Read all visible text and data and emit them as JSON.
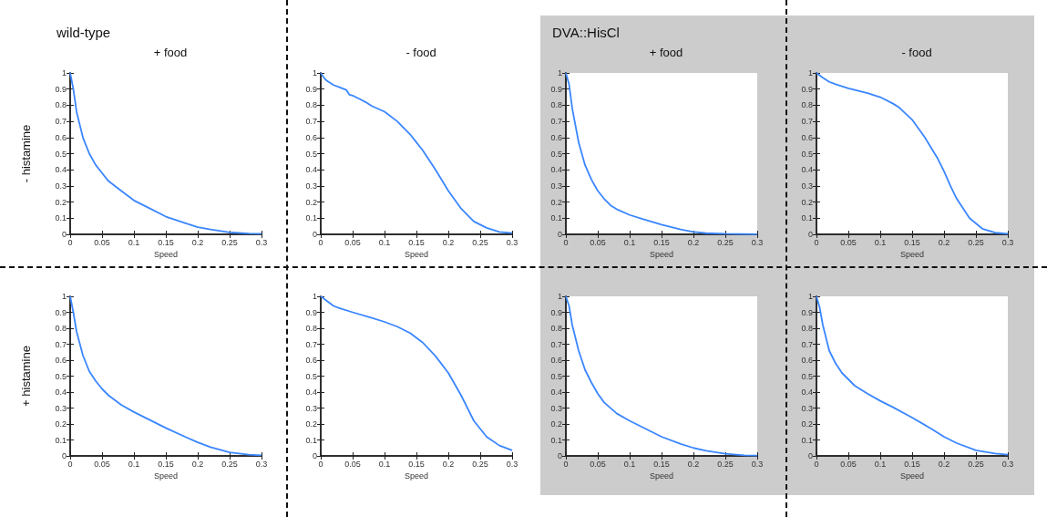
{
  "chart_data": [
    {
      "type": "line",
      "title": "+ food",
      "ylabel": "- histamine",
      "xlabel": "Speed",
      "annotations": [
        "wild-type"
      ],
      "marker": "none",
      "xlim": [
        0,
        0.3
      ],
      "xticks": [
        0,
        0.05,
        0.1,
        0.15,
        0.2,
        0.25,
        0.3
      ],
      "ylim": [
        0,
        1
      ],
      "yticks": [
        0,
        0.1,
        0.2,
        0.3,
        0.4,
        0.5,
        0.6,
        0.7,
        0.8,
        0.9,
        1
      ],
      "series": [
        {
          "color": "#3a86ff",
          "x": [
            0,
            0.005,
            0.01,
            0.02,
            0.03,
            0.04,
            0.05,
            0.06,
            0.08,
            0.1,
            0.12,
            0.15,
            0.18,
            0.2,
            0.22,
            0.25,
            0.28,
            0.3
          ],
          "values": [
            1,
            0.9,
            0.76,
            0.6,
            0.5,
            0.43,
            0.38,
            0.33,
            0.27,
            0.21,
            0.17,
            0.11,
            0.07,
            0.045,
            0.03,
            0.012,
            0.005,
            0.003
          ]
        }
      ]
    },
    {
      "type": "line",
      "title": "- food",
      "xlabel": "Speed",
      "marker": "none",
      "xlim": [
        0,
        0.3
      ],
      "xticks": [
        0,
        0.05,
        0.1,
        0.15,
        0.2,
        0.25,
        0.3
      ],
      "ylim": [
        0,
        1
      ],
      "yticks": [
        0,
        0.1,
        0.2,
        0.3,
        0.4,
        0.5,
        0.6,
        0.7,
        0.8,
        0.9,
        1
      ],
      "series": [
        {
          "color": "#3a86ff",
          "x": [
            0,
            0.005,
            0.01,
            0.02,
            0.03,
            0.04,
            0.045,
            0.05,
            0.06,
            0.07,
            0.08,
            0.1,
            0.12,
            0.14,
            0.15,
            0.16,
            0.18,
            0.2,
            0.22,
            0.24,
            0.26,
            0.28,
            0.3
          ],
          "values": [
            1,
            0.97,
            0.95,
            0.925,
            0.91,
            0.895,
            0.865,
            0.86,
            0.84,
            0.82,
            0.795,
            0.76,
            0.7,
            0.62,
            0.57,
            0.52,
            0.4,
            0.27,
            0.16,
            0.08,
            0.04,
            0.015,
            0.008
          ]
        }
      ]
    },
    {
      "type": "line",
      "title": "+ food",
      "xlabel": "Speed",
      "annotations": [
        "DVA::HisCl"
      ],
      "marker": "none",
      "xlim": [
        0,
        0.3
      ],
      "xticks": [
        0,
        0.05,
        0.1,
        0.15,
        0.2,
        0.25,
        0.3
      ],
      "ylim": [
        0,
        1
      ],
      "yticks": [
        0,
        0.1,
        0.2,
        0.3,
        0.4,
        0.5,
        0.6,
        0.7,
        0.8,
        0.9,
        1
      ],
      "series": [
        {
          "color": "#3a86ff",
          "x": [
            0,
            0.005,
            0.01,
            0.02,
            0.03,
            0.04,
            0.05,
            0.06,
            0.07,
            0.08,
            0.1,
            0.12,
            0.15,
            0.18,
            0.2,
            0.22,
            0.25,
            0.3
          ],
          "values": [
            1,
            0.93,
            0.78,
            0.57,
            0.43,
            0.34,
            0.27,
            0.22,
            0.18,
            0.155,
            0.12,
            0.095,
            0.06,
            0.03,
            0.015,
            0.007,
            0.003,
            0.001
          ]
        }
      ]
    },
    {
      "type": "line",
      "title": "- food",
      "xlabel": "Speed",
      "marker": "none",
      "xlim": [
        0,
        0.3
      ],
      "xticks": [
        0,
        0.05,
        0.1,
        0.15,
        0.2,
        0.25,
        0.3
      ],
      "ylim": [
        0,
        1
      ],
      "yticks": [
        0,
        0.1,
        0.2,
        0.3,
        0.4,
        0.5,
        0.6,
        0.7,
        0.8,
        0.9,
        1
      ],
      "series": [
        {
          "color": "#3a86ff",
          "x": [
            0,
            0.01,
            0.02,
            0.03,
            0.05,
            0.08,
            0.1,
            0.12,
            0.13,
            0.15,
            0.17,
            0.19,
            0.2,
            0.21,
            0.22,
            0.24,
            0.26,
            0.28,
            0.3
          ],
          "values": [
            1,
            0.97,
            0.945,
            0.93,
            0.905,
            0.875,
            0.85,
            0.81,
            0.785,
            0.71,
            0.6,
            0.47,
            0.39,
            0.3,
            0.22,
            0.1,
            0.035,
            0.01,
            0.004
          ]
        }
      ]
    },
    {
      "type": "line",
      "ylabel": "+ histamine",
      "xlabel": "Speed",
      "marker": "none",
      "xlim": [
        0,
        0.3
      ],
      "xticks": [
        0,
        0.05,
        0.1,
        0.15,
        0.2,
        0.25,
        0.3
      ],
      "ylim": [
        0,
        1
      ],
      "yticks": [
        0,
        0.1,
        0.2,
        0.3,
        0.4,
        0.5,
        0.6,
        0.7,
        0.8,
        0.9,
        1
      ],
      "series": [
        {
          "color": "#3a86ff",
          "x": [
            0,
            0.005,
            0.01,
            0.02,
            0.03,
            0.04,
            0.05,
            0.06,
            0.08,
            0.1,
            0.12,
            0.15,
            0.18,
            0.2,
            0.22,
            0.25,
            0.28,
            0.3
          ],
          "values": [
            1,
            0.9,
            0.78,
            0.63,
            0.53,
            0.47,
            0.42,
            0.38,
            0.32,
            0.275,
            0.235,
            0.175,
            0.12,
            0.085,
            0.055,
            0.022,
            0.008,
            0.004
          ]
        }
      ]
    },
    {
      "type": "line",
      "xlabel": "Speed",
      "marker": "none",
      "xlim": [
        0,
        0.3
      ],
      "xticks": [
        0,
        0.05,
        0.1,
        0.15,
        0.2,
        0.25,
        0.3
      ],
      "ylim": [
        0,
        1
      ],
      "yticks": [
        0,
        0.1,
        0.2,
        0.3,
        0.4,
        0.5,
        0.6,
        0.7,
        0.8,
        0.9,
        1
      ],
      "series": [
        {
          "color": "#3a86ff",
          "x": [
            0,
            0.01,
            0.02,
            0.03,
            0.05,
            0.08,
            0.1,
            0.12,
            0.14,
            0.16,
            0.18,
            0.2,
            0.22,
            0.24,
            0.26,
            0.28,
            0.3
          ],
          "values": [
            1,
            0.97,
            0.94,
            0.925,
            0.9,
            0.865,
            0.84,
            0.81,
            0.77,
            0.71,
            0.625,
            0.52,
            0.38,
            0.22,
            0.12,
            0.065,
            0.035
          ]
        }
      ]
    },
    {
      "type": "line",
      "xlabel": "Speed",
      "marker": "none",
      "xlim": [
        0,
        0.3
      ],
      "xticks": [
        0,
        0.05,
        0.1,
        0.15,
        0.2,
        0.25,
        0.3
      ],
      "ylim": [
        0,
        1
      ],
      "yticks": [
        0,
        0.1,
        0.2,
        0.3,
        0.4,
        0.5,
        0.6,
        0.7,
        0.8,
        0.9,
        1
      ],
      "series": [
        {
          "color": "#3a86ff",
          "x": [
            0,
            0.005,
            0.01,
            0.02,
            0.03,
            0.04,
            0.05,
            0.06,
            0.08,
            0.1,
            0.12,
            0.15,
            0.18,
            0.2,
            0.22,
            0.25,
            0.28,
            0.3
          ],
          "values": [
            1,
            0.94,
            0.82,
            0.66,
            0.54,
            0.46,
            0.39,
            0.335,
            0.265,
            0.22,
            0.18,
            0.12,
            0.075,
            0.05,
            0.032,
            0.014,
            0.004,
            0.002
          ]
        }
      ]
    },
    {
      "type": "line",
      "xlabel": "Speed",
      "marker": "none",
      "xlim": [
        0,
        0.3
      ],
      "xticks": [
        0,
        0.05,
        0.1,
        0.15,
        0.2,
        0.25,
        0.3
      ],
      "ylim": [
        0,
        1
      ],
      "yticks": [
        0,
        0.1,
        0.2,
        0.3,
        0.4,
        0.5,
        0.6,
        0.7,
        0.8,
        0.9,
        1
      ],
      "series": [
        {
          "color": "#3a86ff",
          "x": [
            0,
            0.005,
            0.01,
            0.02,
            0.03,
            0.04,
            0.05,
            0.06,
            0.08,
            0.1,
            0.12,
            0.15,
            0.18,
            0.2,
            0.22,
            0.25,
            0.28,
            0.3
          ],
          "values": [
            1,
            0.93,
            0.82,
            0.66,
            0.58,
            0.52,
            0.48,
            0.44,
            0.39,
            0.345,
            0.305,
            0.24,
            0.17,
            0.12,
            0.08,
            0.035,
            0.015,
            0.008
          ]
        }
      ]
    }
  ]
}
